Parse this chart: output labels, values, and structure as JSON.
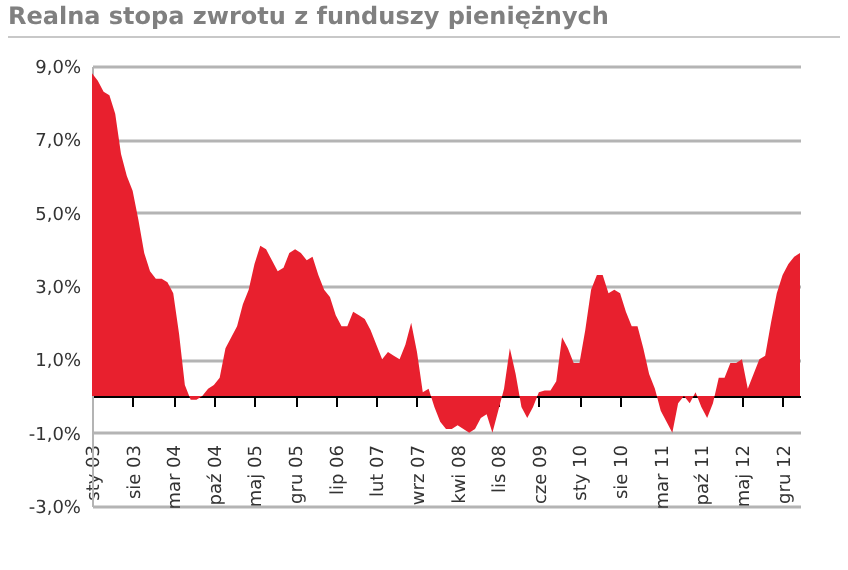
{
  "chart_data": {
    "type": "area",
    "title": "Realna stopa zwrotu z funduszy pieniężnych",
    "categories": [
      "sty 03",
      null,
      null,
      null,
      null,
      null,
      null,
      "sie 03",
      null,
      null,
      null,
      null,
      null,
      null,
      "mar 04",
      null,
      null,
      null,
      null,
      null,
      null,
      "paź 04",
      null,
      null,
      null,
      null,
      null,
      null,
      "maj 05",
      null,
      null,
      null,
      null,
      null,
      null,
      "gru 05",
      null,
      null,
      null,
      null,
      null,
      null,
      "lip 06",
      null,
      null,
      null,
      null,
      null,
      null,
      "lut 07",
      null,
      null,
      null,
      null,
      null,
      null,
      "wrz 07",
      null,
      null,
      null,
      null,
      null,
      null,
      "kwi 08",
      null,
      null,
      null,
      null,
      null,
      null,
      "lis 08",
      null,
      null,
      null,
      null,
      null,
      null,
      "cze 09",
      null,
      null,
      null,
      null,
      null,
      null,
      "sty 10",
      null,
      null,
      null,
      null,
      null,
      null,
      "sie 10",
      null,
      null,
      null,
      null,
      null,
      null,
      "mar 11",
      null,
      null,
      null,
      null,
      null,
      null,
      "paź 11",
      null,
      null,
      null,
      null,
      null,
      null,
      "maj 12",
      null,
      null,
      null,
      null,
      null,
      null,
      "gru 12",
      null,
      null,
      null
    ],
    "series": [
      {
        "color": "#e8202e",
        "values": [
          8.8,
          8.6,
          8.3,
          8.2,
          7.7,
          6.6,
          6.0,
          5.6,
          4.8,
          3.9,
          3.4,
          3.2,
          3.2,
          3.1,
          2.8,
          1.7,
          0.3,
          -0.1,
          -0.1,
          0.0,
          0.2,
          0.3,
          0.5,
          1.3,
          1.6,
          1.9,
          2.5,
          2.9,
          3.6,
          4.1,
          4.0,
          3.7,
          3.4,
          3.5,
          3.9,
          4.0,
          3.9,
          3.7,
          3.8,
          3.3,
          2.9,
          2.7,
          2.2,
          1.9,
          1.9,
          2.3,
          2.2,
          2.1,
          1.8,
          1.4,
          1.0,
          1.2,
          1.1,
          1.0,
          1.4,
          2.0,
          1.2,
          0.1,
          0.2,
          -0.3,
          -0.7,
          -0.9,
          -0.9,
          -0.8,
          -0.9,
          -1.0,
          -0.9,
          -0.6,
          -0.5,
          -1.0,
          -0.4,
          0.2,
          1.3,
          0.6,
          -0.3,
          -0.6,
          -0.3,
          0.1,
          0.15,
          0.15,
          0.4,
          1.6,
          1.3,
          0.9,
          0.9,
          1.8,
          2.9,
          3.3,
          3.3,
          2.8,
          2.9,
          2.8,
          2.3,
          1.9,
          1.9,
          1.3,
          0.6,
          0.2,
          -0.4,
          -0.7,
          -1.0,
          -0.2,
          0.0,
          -0.2,
          0.1,
          -0.3,
          -0.6,
          -0.2,
          0.5,
          0.5,
          0.9,
          0.9,
          1.0,
          0.2,
          0.6,
          1.0,
          1.1,
          2.0,
          2.8,
          3.3,
          3.6,
          3.8,
          3.9
        ]
      }
    ],
    "ylim": [
      -3,
      9
    ],
    "yticks": [
      {
        "value": -3,
        "label": "-3,0%"
      },
      {
        "value": -1,
        "label": "-1,0%"
      },
      {
        "value": 1,
        "label": "1,0%"
      },
      {
        "value": 3,
        "label": "3,0%"
      },
      {
        "value": 5,
        "label": "5,0%"
      },
      {
        "value": 7,
        "label": "7,0%"
      },
      {
        "value": 9,
        "label": "9,0%"
      }
    ],
    "grid": "y"
  }
}
